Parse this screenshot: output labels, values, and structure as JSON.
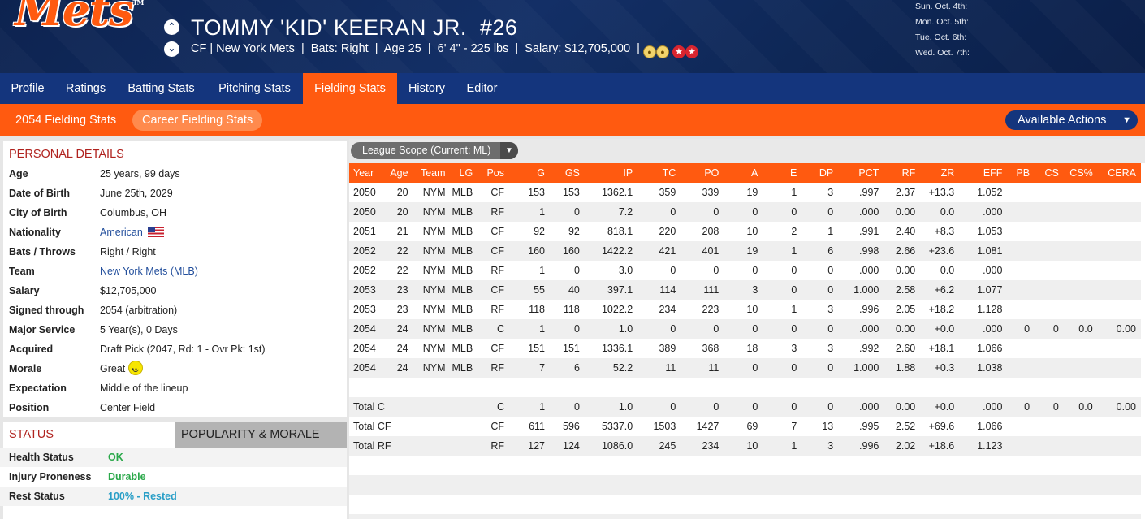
{
  "header": {
    "logo_text": "Mets",
    "player_name": "TOMMY 'KID' KEERAN JR.",
    "number": "#26",
    "position": "CF",
    "team": "New York Mets",
    "bats": "Bats: Right",
    "age": "Age 25",
    "height_weight": "6' 4\" - 225 lbs",
    "salary": "Salary: $12,705,000",
    "schedule": [
      "Sun. Oct. 4th:",
      "Mon. Oct. 5th:",
      "Tue. Oct. 6th:",
      "Wed. Oct. 7th:"
    ]
  },
  "tabs": [
    "Profile",
    "Ratings",
    "Batting Stats",
    "Pitching Stats",
    "Fielding Stats",
    "History",
    "Editor"
  ],
  "active_tab": "Fielding Stats",
  "subtabs": [
    "2054 Fielding Stats",
    "Career Fielding Stats"
  ],
  "active_subtab": "Career Fielding Stats",
  "actions_label": "Available Actions",
  "personal": {
    "title": "PERSONAL DETAILS",
    "rows": [
      {
        "label": "Age",
        "value": "25 years, 99 days"
      },
      {
        "label": "Date of Birth",
        "value": "June 25th, 2029"
      },
      {
        "label": "City of Birth",
        "value": "Columbus, OH"
      },
      {
        "label": "Nationality",
        "value": "American"
      },
      {
        "label": "Bats / Throws",
        "value": "Right / Right"
      },
      {
        "label": "Team",
        "value": "New York Mets (MLB)"
      },
      {
        "label": "Salary",
        "value": "$12,705,000"
      },
      {
        "label": "Signed through",
        "value": "2054 (arbitration)"
      },
      {
        "label": "Major Service",
        "value": "5 Year(s), 0 Days"
      },
      {
        "label": "Acquired",
        "value": "Draft Pick (2047, Rd: 1 - Ovr Pk: 1st)"
      },
      {
        "label": "Morale",
        "value": "Great"
      },
      {
        "label": "Expectation",
        "value": "Middle of the lineup"
      },
      {
        "label": "Position",
        "value": "Center Field"
      }
    ]
  },
  "status": {
    "title": "STATUS",
    "other_tab": "POPULARITY & MORALE",
    "rows": [
      {
        "label": "Health Status",
        "value": "OK",
        "color": "#2aa84a"
      },
      {
        "label": "Injury Proneness",
        "value": "Durable",
        "color": "#2aa84a"
      },
      {
        "label": "Rest Status",
        "value": "100% - Rested",
        "color": "#2a9fc7"
      }
    ]
  },
  "scope": {
    "label": "League Scope  (Current: ML)"
  },
  "table": {
    "columns": [
      "Year",
      "Age",
      "Team",
      "LG",
      "Pos",
      "G",
      "GS",
      "IP",
      "TC",
      "PO",
      "A",
      "E",
      "DP",
      "PCT",
      "RF",
      "ZR",
      "EFF",
      "PB",
      "CS",
      "CS%",
      "CERA"
    ],
    "rows": [
      [
        "2050",
        "20",
        "NYM",
        "MLB",
        "CF",
        "153",
        "153",
        "1362.1",
        "359",
        "339",
        "19",
        "1",
        "3",
        ".997",
        "2.37",
        "+13.3",
        "1.052",
        "",
        "",
        "",
        ""
      ],
      [
        "2050",
        "20",
        "NYM",
        "MLB",
        "RF",
        "1",
        "0",
        "7.2",
        "0",
        "0",
        "0",
        "0",
        "0",
        ".000",
        "0.00",
        "0.0",
        ".000",
        "",
        "",
        "",
        ""
      ],
      [
        "2051",
        "21",
        "NYM",
        "MLB",
        "CF",
        "92",
        "92",
        "818.1",
        "220",
        "208",
        "10",
        "2",
        "1",
        ".991",
        "2.40",
        "+8.3",
        "1.053",
        "",
        "",
        "",
        ""
      ],
      [
        "2052",
        "22",
        "NYM",
        "MLB",
        "CF",
        "160",
        "160",
        "1422.2",
        "421",
        "401",
        "19",
        "1",
        "6",
        ".998",
        "2.66",
        "+23.6",
        "1.081",
        "",
        "",
        "",
        ""
      ],
      [
        "2052",
        "22",
        "NYM",
        "MLB",
        "RF",
        "1",
        "0",
        "3.0",
        "0",
        "0",
        "0",
        "0",
        "0",
        ".000",
        "0.00",
        "0.0",
        ".000",
        "",
        "",
        "",
        ""
      ],
      [
        "2053",
        "23",
        "NYM",
        "MLB",
        "CF",
        "55",
        "40",
        "397.1",
        "114",
        "111",
        "3",
        "0",
        "0",
        "1.000",
        "2.58",
        "+6.2",
        "1.077",
        "",
        "",
        "",
        ""
      ],
      [
        "2053",
        "23",
        "NYM",
        "MLB",
        "RF",
        "118",
        "118",
        "1022.2",
        "234",
        "223",
        "10",
        "1",
        "3",
        ".996",
        "2.05",
        "+18.2",
        "1.128",
        "",
        "",
        "",
        ""
      ],
      [
        "2054",
        "24",
        "NYM",
        "MLB",
        "C",
        "1",
        "0",
        "1.0",
        "0",
        "0",
        "0",
        "0",
        "0",
        ".000",
        "0.00",
        "+0.0",
        ".000",
        "0",
        "0",
        "0.0",
        "0.00"
      ],
      [
        "2054",
        "24",
        "NYM",
        "MLB",
        "CF",
        "151",
        "151",
        "1336.1",
        "389",
        "368",
        "18",
        "3",
        "3",
        ".992",
        "2.60",
        "+18.1",
        "1.066",
        "",
        "",
        "",
        ""
      ],
      [
        "2054",
        "24",
        "NYM",
        "MLB",
        "RF",
        "7",
        "6",
        "52.2",
        "11",
        "11",
        "0",
        "0",
        "0",
        "1.000",
        "1.88",
        "+0.3",
        "1.038",
        "",
        "",
        "",
        ""
      ]
    ],
    "totals": [
      [
        "Total C",
        "C",
        "1",
        "0",
        "1.0",
        "0",
        "0",
        "0",
        "0",
        "0",
        ".000",
        "0.00",
        "+0.0",
        ".000",
        "0",
        "0",
        "0.0",
        "0.00"
      ],
      [
        "Total CF",
        "CF",
        "611",
        "596",
        "5337.0",
        "1503",
        "1427",
        "69",
        "7",
        "13",
        ".995",
        "2.52",
        "+69.6",
        "1.066",
        "",
        "",
        "",
        ""
      ],
      [
        "Total RF",
        "RF",
        "127",
        "124",
        "1086.0",
        "245",
        "234",
        "10",
        "1",
        "3",
        ".996",
        "2.02",
        "+18.6",
        "1.123",
        "",
        "",
        "",
        ""
      ]
    ]
  },
  "colors": {
    "brand_orange": "#ff5a10",
    "brand_navy": "#14357d"
  }
}
